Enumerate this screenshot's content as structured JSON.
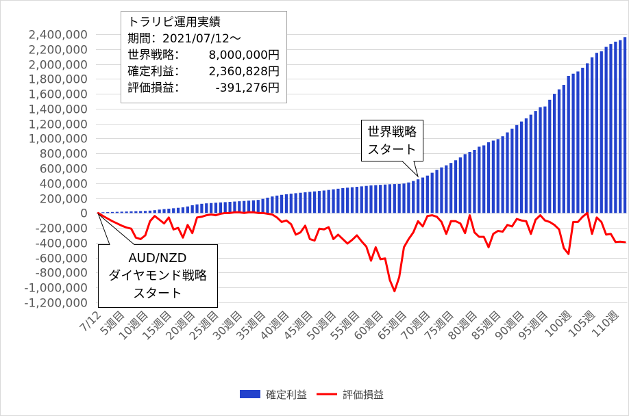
{
  "chart_data": {
    "type": "bar",
    "x_tick_labels": [
      "7/12",
      "5週目",
      "10週目",
      "15週目",
      "20週目",
      "25週目",
      "30週目",
      "35週目",
      "40週目",
      "45週目",
      "50週目",
      "55週目",
      "60週目",
      "65週目",
      "70週目",
      "75週目",
      "80週目",
      "85週目",
      "90週目",
      "95週目",
      "100週",
      "105週",
      "110週"
    ],
    "x_tick_interval": 5,
    "y_tick_labels": [
      "2,400,000",
      "2,200,000",
      "2,000,000",
      "1,800,000",
      "1,600,000",
      "1,400,000",
      "1,200,000",
      "1,000,000",
      "800,000",
      "600,000",
      "400,000",
      "200,000",
      "0",
      "-200,000",
      "-400,000",
      "-600,000",
      "-800,000",
      "-1,000,000",
      "-1,200,000"
    ],
    "ylim": [
      -1200000,
      2400000
    ],
    "grid": true,
    "legend_position": "bottom",
    "series": [
      {
        "name": "確定利益",
        "type": "bar",
        "color": "#2342cc",
        "values": [
          5000,
          10000,
          12000,
          14000,
          16000,
          18000,
          20000,
          22000,
          24000,
          26000,
          28000,
          32000,
          38000,
          46000,
          52000,
          58000,
          64000,
          70000,
          76000,
          88000,
          104000,
          116000,
          124000,
          130000,
          134000,
          138000,
          142000,
          146000,
          150000,
          154000,
          158000,
          162000,
          166000,
          170000,
          176000,
          190000,
          206000,
          222000,
          234000,
          244000,
          252000,
          260000,
          266000,
          272000,
          278000,
          284000,
          290000,
          296000,
          302000,
          310000,
          318000,
          326000,
          334000,
          340000,
          346000,
          352000,
          358000,
          364000,
          370000,
          374000,
          378000,
          382000,
          386000,
          388000,
          390000,
          396000,
          410000,
          430000,
          452000,
          476000,
          502000,
          540000,
          580000,
          612000,
          640000,
          672000,
          708000,
          746000,
          790000,
          820000,
          848000,
          890000,
          908000,
          950000,
          972000,
          992000,
          1030000,
          1082000,
          1132000,
          1180000,
          1228000,
          1270000,
          1320000,
          1370000,
          1420000,
          1430000,
          1520000,
          1600000,
          1660000,
          1720000,
          1840000,
          1870000,
          1900000,
          1950000,
          2010000,
          2090000,
          2150000,
          2170000,
          2230000,
          2270000,
          2300000,
          2320000,
          2360828
        ]
      },
      {
        "name": "評価損益",
        "type": "line",
        "color": "#ff0000",
        "values": [
          0,
          -40000,
          -75000,
          -110000,
          -140000,
          -170000,
          -195000,
          -210000,
          -330000,
          -350000,
          -300000,
          -110000,
          -40000,
          -90000,
          -140000,
          -60000,
          -220000,
          -200000,
          -330000,
          -160000,
          -270000,
          -60000,
          -50000,
          -30000,
          -20000,
          -30000,
          -10000,
          0,
          0,
          10000,
          10000,
          0,
          10000,
          10000,
          0,
          0,
          -10000,
          -20000,
          -60000,
          -120000,
          -100000,
          -150000,
          -290000,
          -260000,
          -170000,
          -350000,
          -370000,
          -210000,
          -220000,
          -190000,
          -350000,
          -290000,
          -350000,
          -410000,
          -360000,
          -300000,
          -380000,
          -450000,
          -640000,
          -460000,
          -620000,
          -610000,
          -900000,
          -1050000,
          -860000,
          -460000,
          -350000,
          -260000,
          -110000,
          -180000,
          -40000,
          -30000,
          -50000,
          -120000,
          -280000,
          -110000,
          -110000,
          -140000,
          -270000,
          -30000,
          -260000,
          -320000,
          -320000,
          -460000,
          -280000,
          -240000,
          -250000,
          -160000,
          -180000,
          -80000,
          -100000,
          -110000,
          -280000,
          -90000,
          -30000,
          -100000,
          -120000,
          -160000,
          -220000,
          -470000,
          -550000,
          -120000,
          -120000,
          -50000,
          0,
          -280000,
          -60000,
          -120000,
          -290000,
          -280000,
          -390000,
          -385000,
          -391276
        ]
      }
    ],
    "annotations": {
      "info_box": {
        "title": "トラリピ運用実績",
        "period": "期間：2021/07/12～",
        "rows": [
          {
            "label": "世界戦略：",
            "value": "8,000,000円"
          },
          {
            "label": "確定利益：",
            "value": "2,360,828円"
          },
          {
            "label": "評価損益：",
            "value": "-391,276円"
          }
        ]
      },
      "callouts": [
        {
          "lines": [
            "世界戦略",
            "スタート"
          ]
        },
        {
          "lines": [
            "AUD/NZD",
            "ダイヤモンド戦略",
            "スタート"
          ]
        }
      ]
    }
  }
}
